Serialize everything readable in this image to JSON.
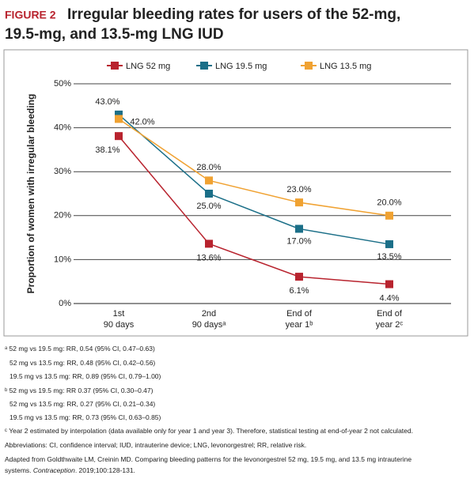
{
  "figure_label": "FIGURE 2",
  "chart_data": {
    "type": "line",
    "title": [
      "Irregular bleeding rates for users of the 52-mg,",
      "19.5-mg, and 13.5-mg LNG IUD"
    ],
    "y_label": "Proportion of women with irregular bleeding",
    "categories": [
      [
        "1st",
        "90 days"
      ],
      [
        "2nd",
        "90 daysᵃ"
      ],
      [
        "End of",
        "year 1ᵇ"
      ],
      [
        "End of",
        "year 2ᶜ"
      ]
    ],
    "series": [
      {
        "name": "LNG 52 mg",
        "color": "#b8232e",
        "values": [
          38.1,
          13.6,
          6.1,
          4.4
        ],
        "value_labels": [
          "38.1%",
          "13.6%",
          "6.1%",
          "4.4%"
        ]
      },
      {
        "name": "LNG 19.5 mg",
        "color": "#1b6f88",
        "values": [
          43.0,
          25.0,
          17.0,
          13.5
        ],
        "value_labels": [
          "43.0%",
          "25.0%",
          "17.0%",
          "13.5%"
        ]
      },
      {
        "name": "LNG 13.5 mg",
        "color": "#f0a232",
        "values": [
          42.0,
          28.0,
          23.0,
          20.0
        ],
        "value_labels": [
          "42.0%",
          "28.0%",
          "23.0%",
          "20.0%"
        ]
      }
    ],
    "ylim": [
      0,
      50
    ],
    "yticks": [
      {
        "value": 0,
        "label": "0%"
      },
      {
        "value": 10,
        "label": "10%"
      },
      {
        "value": 20,
        "label": "20%"
      },
      {
        "value": 30,
        "label": "30%"
      },
      {
        "value": 40,
        "label": "40%"
      },
      {
        "value": 50,
        "label": "50%"
      }
    ],
    "grid": true,
    "legend": "top"
  },
  "notes": [
    "ᵃ 52 mg vs 19.5 mg: RR, 0.54 (95% CI, 0.47–0.63)",
    "52 mg vs 13.5 mg: RR, 0.48 (95% CI, 0.42–0.56)",
    "19.5 mg vs 13.5 mg: RR, 0.89 (95% CI, 0.79–1.00)",
    "ᵇ 52 mg vs 19.5 mg: RR 0.37 (95% CI, 0.30–0.47)",
    "52 mg vs 13.5 mg: RR, 0.27 (95% CI, 0.21–0.34)",
    "19.5 mg vs 13.5 mg: RR, 0.73 (95% CI, 0.63–0.85)",
    "ᶜ Year 2 estimated by interpolation (data available only for year 1 and year 3). Therefore, statistical testing at end-of-year 2 not calculated."
  ],
  "abbreviations": "Abbreviations: CI, confidence interval; IUD, intrauterine device; LNG, levonorgestrel; RR, relative risk.",
  "source": [
    "Adapted from Goldthwaite LM, Creinin MD. Comparing bleeding patterns for the levonorgestrel 52 mg, 19.5 mg, and 13.5 mg intrauterine",
    "systems. ",
    "Contraception",
    ". 2019;100:128-131."
  ]
}
